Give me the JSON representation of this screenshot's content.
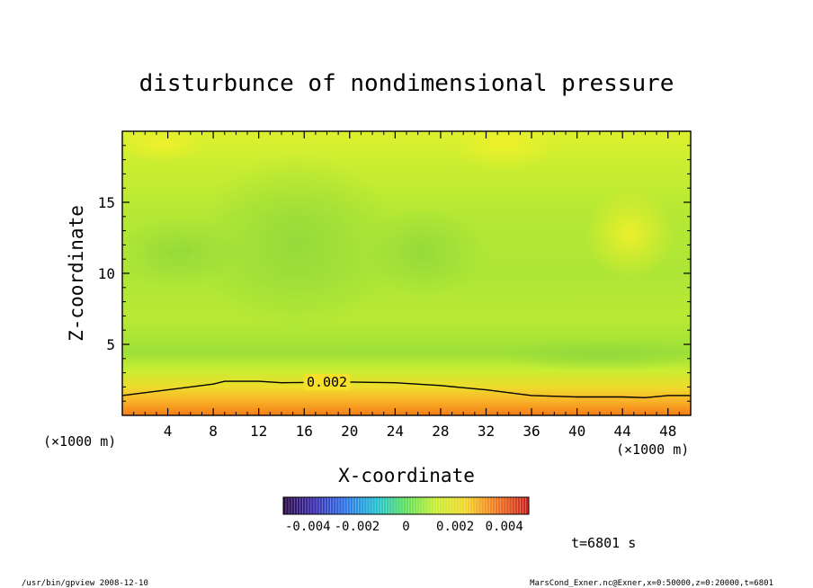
{
  "chart_data": {
    "type": "heatmap",
    "title": "disturbunce of nondimensional pressure",
    "xlabel": "X-coordinate",
    "ylabel": "Z-coordinate",
    "x_unit": "(×1000 m)",
    "y_unit": "(×1000 m)",
    "xlim": [
      0,
      50
    ],
    "ylim": [
      0,
      20
    ],
    "x_ticks": [
      4,
      8,
      12,
      16,
      20,
      24,
      28,
      32,
      36,
      40,
      44,
      48
    ],
    "y_ticks": [
      5,
      10,
      15
    ],
    "x_tick_labels": [
      "4",
      "8",
      "12",
      "16",
      "20",
      "24",
      "28",
      "32",
      "36",
      "40",
      "44",
      "48"
    ],
    "y_tick_labels": [
      "5",
      "10",
      "15"
    ],
    "contour": {
      "level": 0.002,
      "label": "0.002",
      "label_x": 18,
      "points": [
        [
          0,
          1.4
        ],
        [
          4,
          1.8
        ],
        [
          8,
          2.2
        ],
        [
          9,
          2.4
        ],
        [
          12,
          2.4
        ],
        [
          14,
          2.3
        ],
        [
          20,
          2.35
        ],
        [
          24,
          2.3
        ],
        [
          28,
          2.1
        ],
        [
          32,
          1.8
        ],
        [
          36,
          1.4
        ],
        [
          40,
          1.3
        ],
        [
          44,
          1.3
        ],
        [
          46,
          1.25
        ],
        [
          48,
          1.4
        ],
        [
          50,
          1.4
        ]
      ]
    },
    "colorbar": {
      "range": [
        -0.005,
        0.005
      ],
      "tick_values": [
        -0.004,
        -0.002,
        0,
        0.002,
        0.004
      ],
      "tick_labels": [
        "-0.004",
        "-0.002",
        "0",
        "0.002",
        "0.004"
      ]
    },
    "grid": false
  },
  "time_label": "t=6801 s",
  "footer": {
    "left": "/usr/bin/gpview  2008-12-10",
    "right": "MarsCond_Exner.nc@Exner,x=0:50000,z=0:20000,t=6801"
  }
}
